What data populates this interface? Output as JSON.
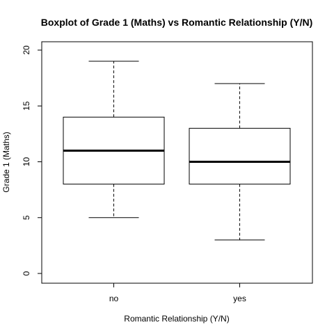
{
  "chart_data": {
    "type": "boxplot",
    "title": "Boxplot of Grade 1 (Maths)  vs  Romantic Relationship (Y/N)",
    "xlabel": "Romantic Relationship (Y/N)",
    "ylabel": "Grade 1 (Maths)",
    "ylim": [
      0,
      20
    ],
    "yticks": [
      "0",
      "5",
      "10",
      "15",
      "20"
    ],
    "categories": [
      "no",
      "yes"
    ],
    "boxes": [
      {
        "category": "no",
        "whisker_low": 5,
        "q1": 8,
        "median": 11,
        "q3": 14,
        "whisker_high": 19
      },
      {
        "category": "yes",
        "whisker_low": 3,
        "q1": 8,
        "median": 10,
        "q3": 13,
        "whisker_high": 17
      }
    ],
    "grid": false,
    "legend": "none"
  }
}
